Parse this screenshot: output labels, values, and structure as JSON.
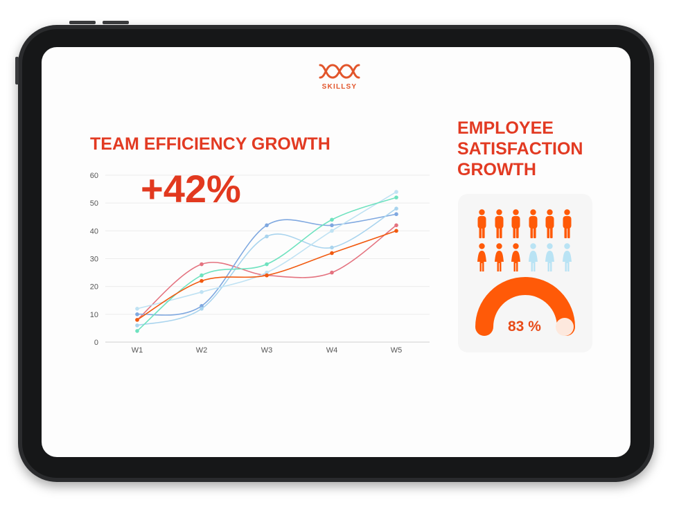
{
  "brand": {
    "name": "SKILLSY",
    "color": "#e2552b"
  },
  "efficiency": {
    "title": "TEAM EFFICIENCY GROWTH",
    "highlight": "+42%"
  },
  "satisfaction": {
    "title_lines": [
      "EMPLOYEE",
      "SATISFACTION",
      "GROWTH"
    ],
    "percent_label": "83 %",
    "percent_value": 83,
    "icons_total": 12,
    "icons_highlighted": 9
  },
  "colors": {
    "accent": "#e2391f",
    "gauge": "#ff5a08",
    "person_filled": "#ff5a08",
    "person_faded": "#b9e3f4"
  },
  "chart_data": {
    "type": "line",
    "categories": [
      "W1",
      "W2",
      "W3",
      "W4",
      "W5"
    ],
    "ylim": [
      0,
      60
    ],
    "yticks": [
      "0",
      "10",
      "20",
      "30",
      "40",
      "50",
      "60"
    ],
    "grid": true,
    "series": [
      {
        "color": "#e4727f",
        "values": [
          8,
          28,
          24,
          25,
          42
        ]
      },
      {
        "color": "#7fa8e0",
        "values": [
          10,
          13,
          42,
          42,
          46
        ]
      },
      {
        "color": "#a9d4ee",
        "values": [
          6,
          12,
          38,
          34,
          48
        ]
      },
      {
        "color": "#bfe2f3",
        "values": [
          12,
          18,
          25,
          40,
          54
        ]
      },
      {
        "color": "#6ee2bf",
        "values": [
          4,
          24,
          28,
          44,
          52
        ]
      },
      {
        "color": "#f15a10",
        "values": [
          8,
          22,
          24,
          32,
          40
        ]
      }
    ]
  }
}
